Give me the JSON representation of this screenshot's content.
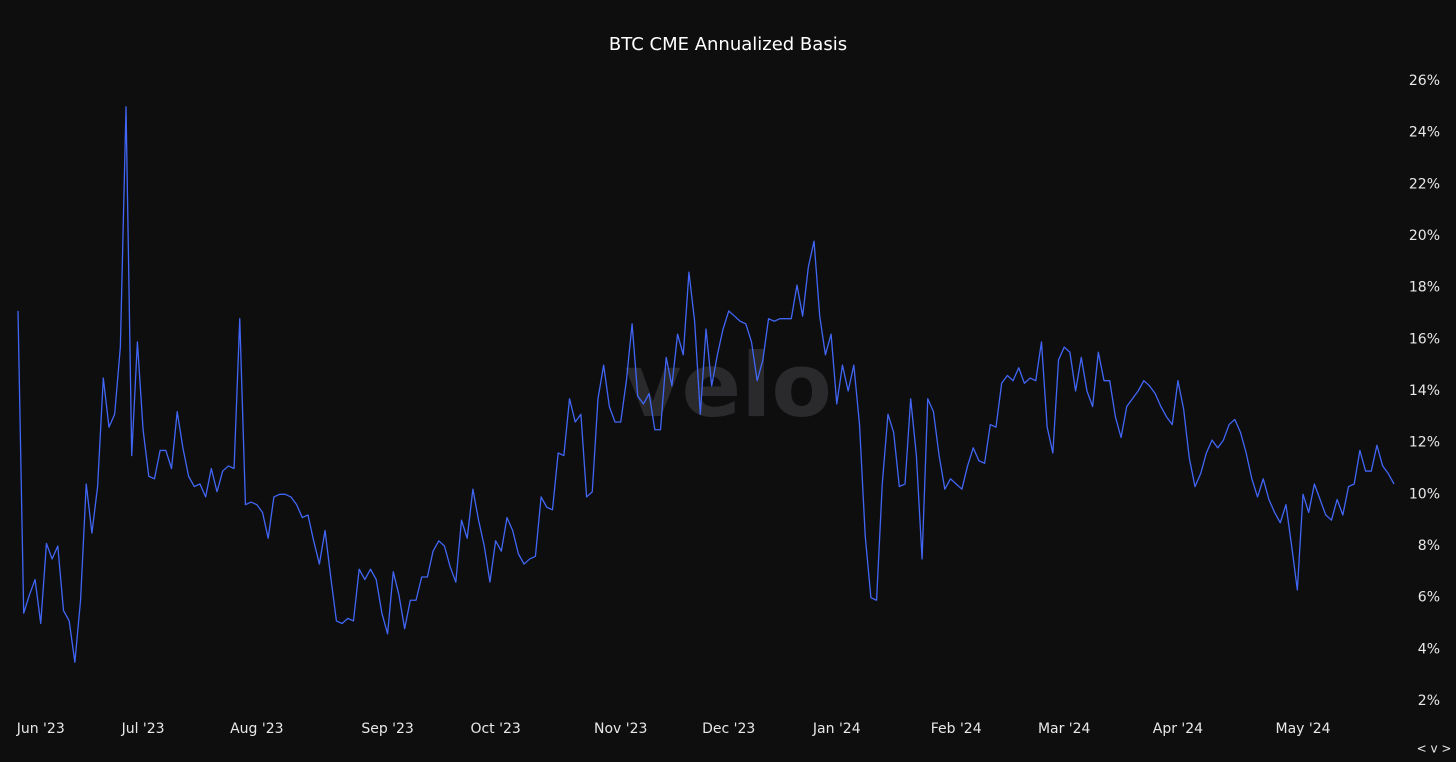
{
  "chart_data": {
    "type": "line",
    "title": "BTC CME Annualized Basis",
    "watermark": "velo",
    "corner_control": "< v >",
    "color": "#4166f5",
    "categories": [
      null,
      null,
      null,
      null,
      "Jun '23",
      null,
      null,
      null,
      null,
      null,
      null,
      null,
      null,
      null,
      null,
      null,
      null,
      null,
      null,
      null,
      null,
      null,
      "Jul '23",
      null,
      null,
      null,
      null,
      null,
      null,
      null,
      null,
      null,
      null,
      null,
      null,
      null,
      null,
      null,
      null,
      null,
      null,
      null,
      "Aug '23",
      null,
      null,
      null,
      null,
      null,
      null,
      null,
      null,
      null,
      null,
      null,
      null,
      null,
      null,
      null,
      null,
      null,
      null,
      null,
      null,
      null,
      null,
      "Sep '23",
      null,
      null,
      null,
      null,
      null,
      null,
      null,
      null,
      null,
      null,
      null,
      null,
      null,
      null,
      null,
      null,
      null,
      null,
      "Oct '23",
      null,
      null,
      null,
      null,
      null,
      null,
      null,
      null,
      null,
      null,
      null,
      null,
      null,
      null,
      null,
      null,
      null,
      null,
      null,
      null,
      null,
      "Nov '23",
      null,
      null,
      null,
      null,
      null,
      null,
      null,
      null,
      null,
      null,
      null,
      null,
      null,
      null,
      null,
      null,
      null,
      null,
      "Dec '23",
      null,
      null,
      null,
      null,
      null,
      null,
      null,
      null,
      null,
      null,
      null,
      null,
      null,
      null,
      null,
      null,
      null,
      null,
      "Jan '24",
      null,
      null,
      null,
      null,
      null,
      null,
      null,
      null,
      null,
      null,
      null,
      null,
      null,
      null,
      null,
      null,
      null,
      null,
      null,
      null,
      "Feb '24",
      null,
      null,
      null,
      null,
      null,
      null,
      null,
      null,
      null,
      null,
      null,
      null,
      null,
      null,
      null,
      null,
      null,
      null,
      "Mar '24",
      null,
      null,
      null,
      null,
      null,
      null,
      null,
      null,
      null,
      null,
      null,
      null,
      null,
      null,
      null,
      null,
      null,
      null,
      null,
      "Apr '24",
      null,
      null,
      null,
      null,
      null,
      null,
      null,
      null,
      null,
      null,
      null,
      null,
      null,
      null,
      null,
      null,
      null,
      null,
      null,
      null,
      null,
      "May '24",
      null,
      null,
      null,
      null,
      null,
      null,
      null,
      null,
      null,
      null,
      null,
      null,
      null,
      null,
      null,
      null
    ],
    "values": [
      17.1,
      5.4,
      6.1,
      6.7,
      5.0,
      8.1,
      7.5,
      8.0,
      5.5,
      5.1,
      3.5,
      5.9,
      10.4,
      8.5,
      10.3,
      14.5,
      12.6,
      13.1,
      15.7,
      25.0,
      11.5,
      15.9,
      12.5,
      10.7,
      10.6,
      11.7,
      11.7,
      11.0,
      13.2,
      11.8,
      10.7,
      10.3,
      10.4,
      9.9,
      11.0,
      10.1,
      10.9,
      11.1,
      11.0,
      16.8,
      9.6,
      9.7,
      9.6,
      9.3,
      8.3,
      9.9,
      10.0,
      10.0,
      9.9,
      9.6,
      9.1,
      9.2,
      8.2,
      7.3,
      8.6,
      6.8,
      5.1,
      5.0,
      5.2,
      5.1,
      7.1,
      6.7,
      7.1,
      6.7,
      5.4,
      4.6,
      7.0,
      6.1,
      4.8,
      5.9,
      5.9,
      6.8,
      6.8,
      7.8,
      8.2,
      8.0,
      7.2,
      6.6,
      9.0,
      8.3,
      10.2,
      9.0,
      8.0,
      6.6,
      8.2,
      7.8,
      9.1,
      8.6,
      7.7,
      7.3,
      7.5,
      7.6,
      9.9,
      9.5,
      9.4,
      11.6,
      11.5,
      13.7,
      12.8,
      13.1,
      9.9,
      10.1,
      13.7,
      15.0,
      13.4,
      12.8,
      12.8,
      14.4,
      16.6,
      13.8,
      13.5,
      13.9,
      12.5,
      12.5,
      15.3,
      14.2,
      16.2,
      15.4,
      18.6,
      16.7,
      13.1,
      16.4,
      14.2,
      15.4,
      16.4,
      17.1,
      16.9,
      16.7,
      16.6,
      15.9,
      14.4,
      15.2,
      16.8,
      16.7,
      16.8,
      16.8,
      16.8,
      18.1,
      16.9,
      18.8,
      19.8,
      16.9,
      15.4,
      16.2,
      13.5,
      15.0,
      14.0,
      15.0,
      12.7,
      8.4,
      6.0,
      5.9,
      10.4,
      13.1,
      12.4,
      10.3,
      10.4,
      13.7,
      11.5,
      7.5,
      13.7,
      13.2,
      11.5,
      10.2,
      10.6,
      10.4,
      10.2,
      11.1,
      11.8,
      11.3,
      11.2,
      12.7,
      12.6,
      14.3,
      14.6,
      14.4,
      14.9,
      14.3,
      14.5,
      14.4,
      15.9,
      12.6,
      11.6,
      15.2,
      15.7,
      15.5,
      14.0,
      15.3,
      14.0,
      13.4,
      15.5,
      14.4,
      14.4,
      13.0,
      12.2,
      13.4,
      13.7,
      14.0,
      14.4,
      14.2,
      13.9,
      13.4,
      13.0,
      12.7,
      14.4,
      13.3,
      11.4,
      10.3,
      10.8,
      11.6,
      12.1,
      11.8,
      12.1,
      12.7,
      12.9,
      12.4,
      11.6,
      10.6,
      9.9,
      10.6,
      9.8,
      9.3,
      8.9,
      9.6,
      8.0,
      6.3,
      10.0,
      9.3,
      10.4,
      9.8,
      9.2,
      9.0,
      9.8,
      9.2,
      10.3,
      10.4,
      11.7,
      10.9,
      10.9,
      11.9,
      11.1,
      10.8,
      10.4
    ],
    "ylim": [
      2,
      26
    ],
    "yticks": [
      {
        "value": 2,
        "label": "2%"
      },
      {
        "value": 4,
        "label": "4%"
      },
      {
        "value": 6,
        "label": "6%"
      },
      {
        "value": 8,
        "label": "8%"
      },
      {
        "value": 10,
        "label": "10%"
      },
      {
        "value": 12,
        "label": "12%"
      },
      {
        "value": 14,
        "label": "14%"
      },
      {
        "value": 16,
        "label": "16%"
      },
      {
        "value": 18,
        "label": "18%"
      },
      {
        "value": 20,
        "label": "20%"
      },
      {
        "value": 22,
        "label": "22%"
      },
      {
        "value": 24,
        "label": "24%"
      },
      {
        "value": 26,
        "label": "26%"
      }
    ],
    "grid": false
  }
}
